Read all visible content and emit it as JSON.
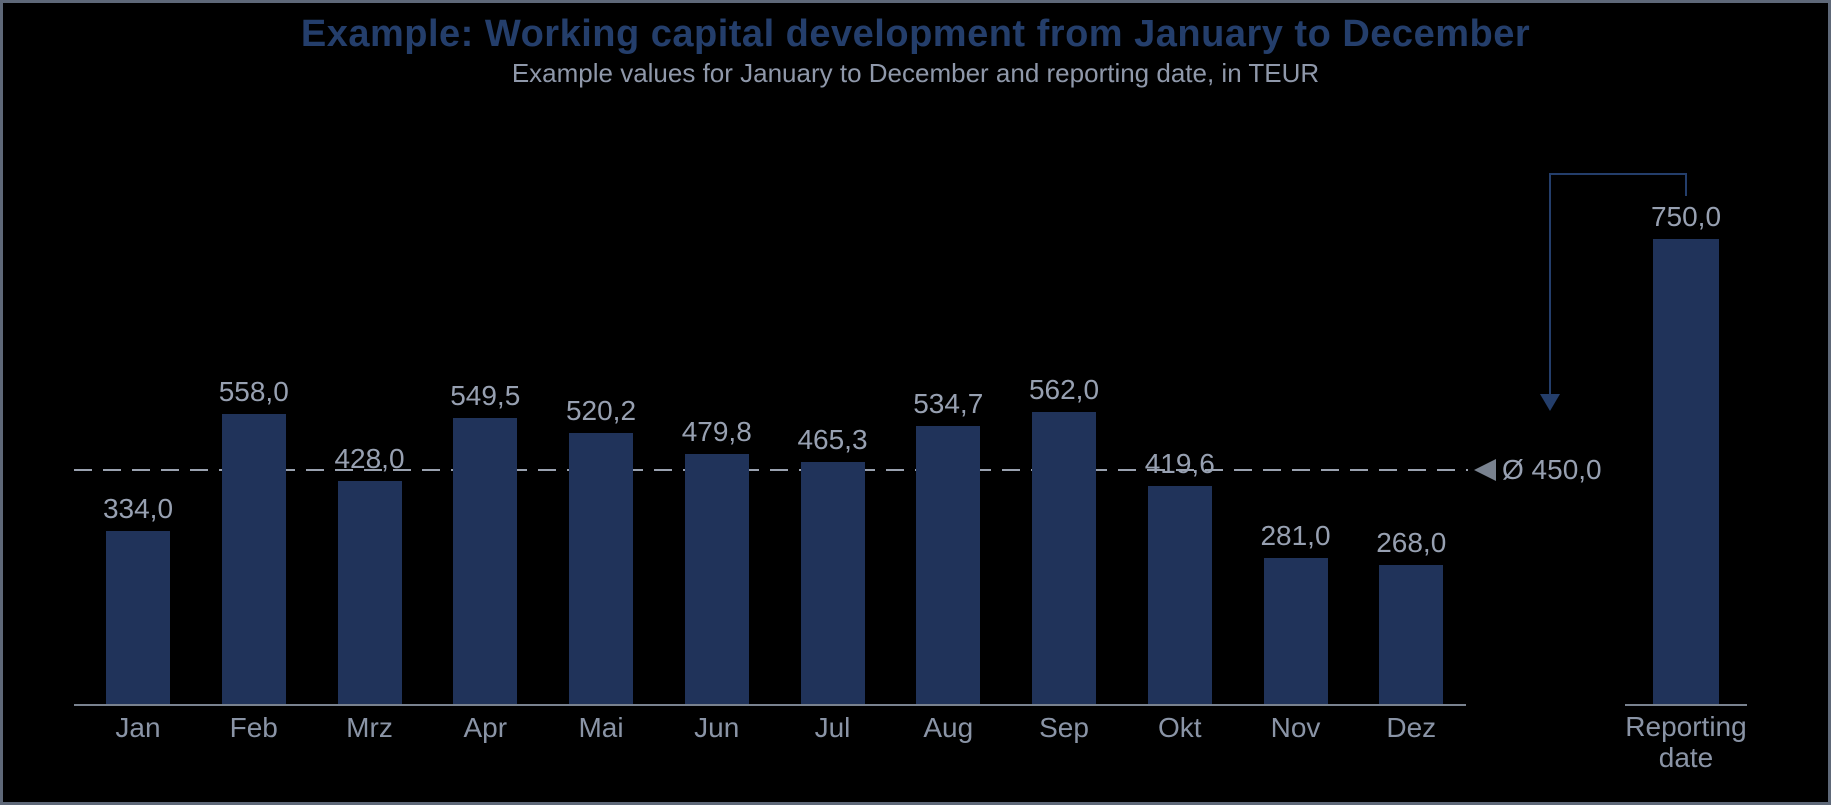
{
  "header": {
    "title": "Example: Working capital development from January to December",
    "subtitle": "Example values for January to December and reporting date, in TEUR"
  },
  "chart_data": {
    "type": "bar",
    "title": "Example: Working capital development from January to December",
    "subtitle": "Example values for January to December and reporting date, in TEUR",
    "unit": "TEUR",
    "categories": [
      "Jan",
      "Feb",
      "Mrz",
      "Apr",
      "Mai",
      "Jun",
      "Jul",
      "Aug",
      "Sep",
      "Okt",
      "Nov",
      "Dez"
    ],
    "values": [
      334.0,
      558.0,
      428.0,
      549.5,
      520.2,
      479.8,
      465.3,
      534.7,
      562.0,
      419.6,
      281.0,
      268.0
    ],
    "value_labels": [
      "334,0",
      "558,0",
      "428,0",
      "549,5",
      "520,2",
      "479,8",
      "465,3",
      "534,7",
      "562,0",
      "419,6",
      "281,0",
      "268,0"
    ],
    "average": {
      "value": 450.0,
      "label": "Ø 450,0"
    },
    "reporting_date": {
      "label_lines": [
        "Reporting",
        "date"
      ],
      "value": 750.0,
      "value_label": "750,0",
      "drawn_out_of_scale": true
    },
    "grid": false,
    "legend": "none",
    "y_axis_ticks": "none",
    "colors": {
      "background": "#000000",
      "frame_border": "#5E6878",
      "bar_fill": "#20335A",
      "accent_navy": "#243E6B",
      "value_label": "#97A0B1",
      "month_label": "#8A94A6",
      "subtitle": "#8F98AA",
      "dashed_line": "#9AA2B0",
      "axis_gray": "#79828F"
    }
  }
}
